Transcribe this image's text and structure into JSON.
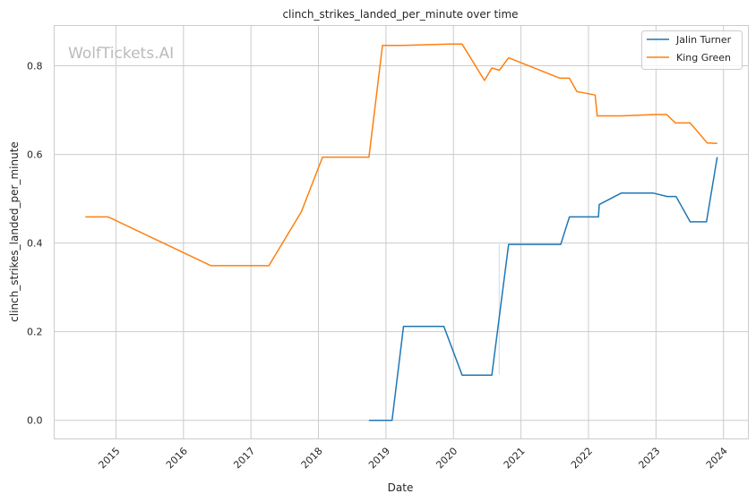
{
  "chart_data": {
    "type": "line",
    "title": "clinch_strikes_landed_per_minute over time",
    "xlabel": "Date",
    "ylabel": "clinch_strikes_landed_per_minute",
    "watermark": "WolfTickets.AI",
    "xlim": [
      "2014-02-01",
      "2024-05-15"
    ],
    "ylim": [
      -0.042,
      0.891
    ],
    "x_ticks": [
      "2015",
      "2016",
      "2017",
      "2018",
      "2019",
      "2020",
      "2021",
      "2022",
      "2023",
      "2024"
    ],
    "y_ticks": [
      "0.0",
      "0.2",
      "0.4",
      "0.6",
      "0.8"
    ],
    "grid": true,
    "legend_position": "top-right",
    "series": [
      {
        "name": "Jalin Turner",
        "color": "#1f77b4",
        "x": [
          "2018-10-01",
          "2019-02-03",
          "2019-04-06",
          "2019-11-10",
          "2020-02-17",
          "2020-07-27",
          "2020-10-26",
          "2021-08-04",
          "2021-09-20",
          "2022-02-24",
          "2022-02-28",
          "2022-06-28",
          "2022-12-16",
          "2023-03-03",
          "2023-04-20",
          "2023-07-05",
          "2023-10-01",
          "2023-11-28"
        ],
        "y": [
          0.0,
          0.0,
          0.212,
          0.212,
          0.102,
          0.102,
          0.397,
          0.397,
          0.459,
          0.459,
          0.487,
          0.513,
          0.513,
          0.505,
          0.505,
          0.448,
          0.448,
          0.594
        ]
      },
      {
        "name": "King Green",
        "color": "#ff7f0e",
        "x": [
          "2014-07-19",
          "2014-11-20",
          "2016-05-29",
          "2017-04-08",
          "2017-10-01",
          "2018-01-23",
          "2018-10-01",
          "2018-12-13",
          "2019-04-02",
          "2019-12-09",
          "2020-02-17",
          "2020-06-17",
          "2020-07-27",
          "2020-09-06",
          "2020-10-26",
          "2021-07-31",
          "2021-09-20",
          "2021-10-30",
          "2022-02-06",
          "2022-02-17",
          "2022-06-28",
          "2022-12-28",
          "2023-02-28",
          "2023-04-16",
          "2023-07-05",
          "2023-10-05",
          "2023-11-28"
        ],
        "y": [
          0.459,
          0.459,
          0.349,
          0.349,
          0.471,
          0.594,
          0.594,
          0.846,
          0.846,
          0.849,
          0.849,
          0.767,
          0.795,
          0.79,
          0.818,
          0.772,
          0.772,
          0.742,
          0.734,
          0.687,
          0.687,
          0.69,
          0.69,
          0.671,
          0.671,
          0.626,
          0.625
        ]
      }
    ]
  }
}
